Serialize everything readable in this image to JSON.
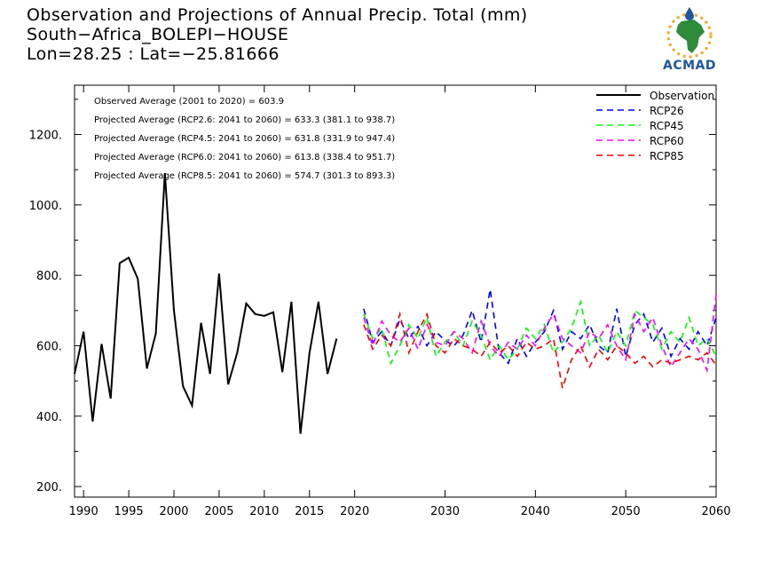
{
  "title": {
    "line1": "Observation and Projections of Annual Precip. Total (mm)",
    "line2": "South−Africa_BOLEPI−HOUSE",
    "line3": "Lon=28.25 : Lat=−25.81666"
  },
  "logo": {
    "text": "ACMAD",
    "icon": "africa-sun-logo-icon"
  },
  "stats": [
    "Observed Average (2001 to 2020) = 603.9",
    "Projected Average (RCP2.6: 2041 to 2060) = 633.3 (381.1 to 938.7)",
    "Projected Average (RCP4.5: 2041 to 2060) = 631.8 (331.9 to 947.4)",
    "Projected Average (RCP6.0: 2041 to 2060) = 613.8 (338.4 to 951.7)",
    "Projected Average (RCP8.5: 2041 to 2060) = 574.7 (301.3 to 893.3)"
  ],
  "chart_data": {
    "type": "line",
    "xlim": [
      1989,
      2060
    ],
    "ylim": [
      170,
      1340
    ],
    "xticks": [
      1990,
      1995,
      2000,
      2005,
      2010,
      2015,
      2020,
      2030,
      2040,
      2050,
      2060
    ],
    "xtick_labels": [
      "1990",
      "1995",
      "2000",
      "2005",
      "2010",
      "2015",
      "2020",
      "2030",
      "2040",
      "2050",
      "2060"
    ],
    "yticks": [
      200,
      400,
      600,
      800,
      1000,
      1200
    ],
    "ytick_labels": [
      "200.",
      "400.",
      "600.",
      "800.",
      "1000.",
      "1200."
    ],
    "legend_position": "top-right",
    "series": [
      {
        "name": "Observation",
        "color": "#000000",
        "dash": "solid",
        "x": [
          1989,
          1990,
          1991,
          1992,
          1993,
          1994,
          1995,
          1996,
          1997,
          1998,
          1999,
          2000,
          2001,
          2002,
          2003,
          2004,
          2005,
          2006,
          2007,
          2008,
          2009,
          2010,
          2011,
          2012,
          2013,
          2014,
          2015,
          2016,
          2017,
          2018,
          2019,
          2020
        ],
        "values": [
          520,
          640,
          385,
          605,
          450,
          835,
          850,
          790,
          535,
          635,
          1090,
          700,
          485,
          430,
          665,
          520,
          805,
          490,
          580,
          720,
          690,
          685,
          695,
          525,
          725,
          350,
          580,
          725,
          520,
          620,
          null,
          null
        ]
      },
      {
        "name": "RCP26",
        "color": "#0000ff",
        "dash": "dashed",
        "x": [
          2021,
          2022,
          2023,
          2024,
          2025,
          2026,
          2027,
          2028,
          2029,
          2030,
          2031,
          2032,
          2033,
          2034,
          2035,
          2036,
          2037,
          2038,
          2039,
          2040,
          2041,
          2042,
          2043,
          2044,
          2045,
          2046,
          2047,
          2048,
          2049,
          2050,
          2051,
          2052,
          2053,
          2054,
          2055,
          2056,
          2057,
          2058,
          2059,
          2060
        ],
        "values": [
          705,
          610,
          640,
          600,
          675,
          620,
          655,
          600,
          640,
          615,
          600,
          630,
          700,
          610,
          760,
          580,
          550,
          620,
          570,
          610,
          640,
          700,
          590,
          640,
          620,
          660,
          600,
          580,
          705,
          570,
          660,
          690,
          610,
          650,
          570,
          620,
          590,
          640,
          600,
          680
        ]
      },
      {
        "name": "RCP45",
        "color": "#00ff00",
        "dash": "dashed",
        "x": [
          2021,
          2022,
          2023,
          2024,
          2025,
          2026,
          2027,
          2028,
          2029,
          2030,
          2031,
          2032,
          2033,
          2034,
          2035,
          2036,
          2037,
          2038,
          2039,
          2040,
          2041,
          2042,
          2043,
          2044,
          2045,
          2046,
          2047,
          2048,
          2049,
          2050,
          2051,
          2052,
          2053,
          2054,
          2055,
          2056,
          2057,
          2058,
          2059,
          2060
        ],
        "values": [
          690,
          620,
          650,
          550,
          600,
          660,
          620,
          680,
          570,
          610,
          640,
          600,
          670,
          630,
          560,
          600,
          560,
          590,
          650,
          620,
          660,
          580,
          610,
          650,
          725,
          600,
          630,
          580,
          640,
          600,
          700,
          680,
          660,
          590,
          640,
          610,
          680,
          600,
          620,
          570
        ]
      },
      {
        "name": "RCP60",
        "color": "#ff00ff",
        "dash": "dashed",
        "x": [
          2021,
          2022,
          2023,
          2024,
          2025,
          2026,
          2027,
          2028,
          2029,
          2030,
          2031,
          2032,
          2033,
          2034,
          2035,
          2036,
          2037,
          2038,
          2039,
          2040,
          2041,
          2042,
          2043,
          2044,
          2045,
          2046,
          2047,
          2048,
          2049,
          2050,
          2051,
          2052,
          2053,
          2054,
          2055,
          2056,
          2057,
          2058,
          2059,
          2060
        ],
        "values": [
          680,
          600,
          670,
          630,
          610,
          650,
          590,
          660,
          610,
          600,
          640,
          620,
          580,
          670,
          600,
          570,
          610,
          590,
          630,
          600,
          650,
          690,
          620,
          600,
          580,
          640,
          620,
          660,
          600,
          560,
          690,
          640,
          680,
          600,
          540,
          580,
          620,
          590,
          530,
          745
        ]
      },
      {
        "name": "RCP85",
        "color": "#ff0000",
        "dash": "dashed",
        "x": [
          2021,
          2022,
          2023,
          2024,
          2025,
          2026,
          2027,
          2028,
          2029,
          2030,
          2031,
          2032,
          2033,
          2034,
          2035,
          2036,
          2037,
          2038,
          2039,
          2040,
          2041,
          2042,
          2043,
          2044,
          2045,
          2046,
          2047,
          2048,
          2049,
          2050,
          2051,
          2052,
          2053,
          2054,
          2055,
          2056,
          2057,
          2058,
          2059,
          2060
        ],
        "values": [
          660,
          590,
          630,
          600,
          690,
          580,
          640,
          690,
          600,
          580,
          620,
          600,
          590,
          570,
          610,
          580,
          600,
          570,
          610,
          590,
          600,
          620,
          480,
          560,
          600,
          540,
          590,
          560,
          600,
          580,
          550,
          570,
          540,
          560,
          550,
          560,
          570,
          560,
          580,
          545
        ]
      }
    ]
  }
}
